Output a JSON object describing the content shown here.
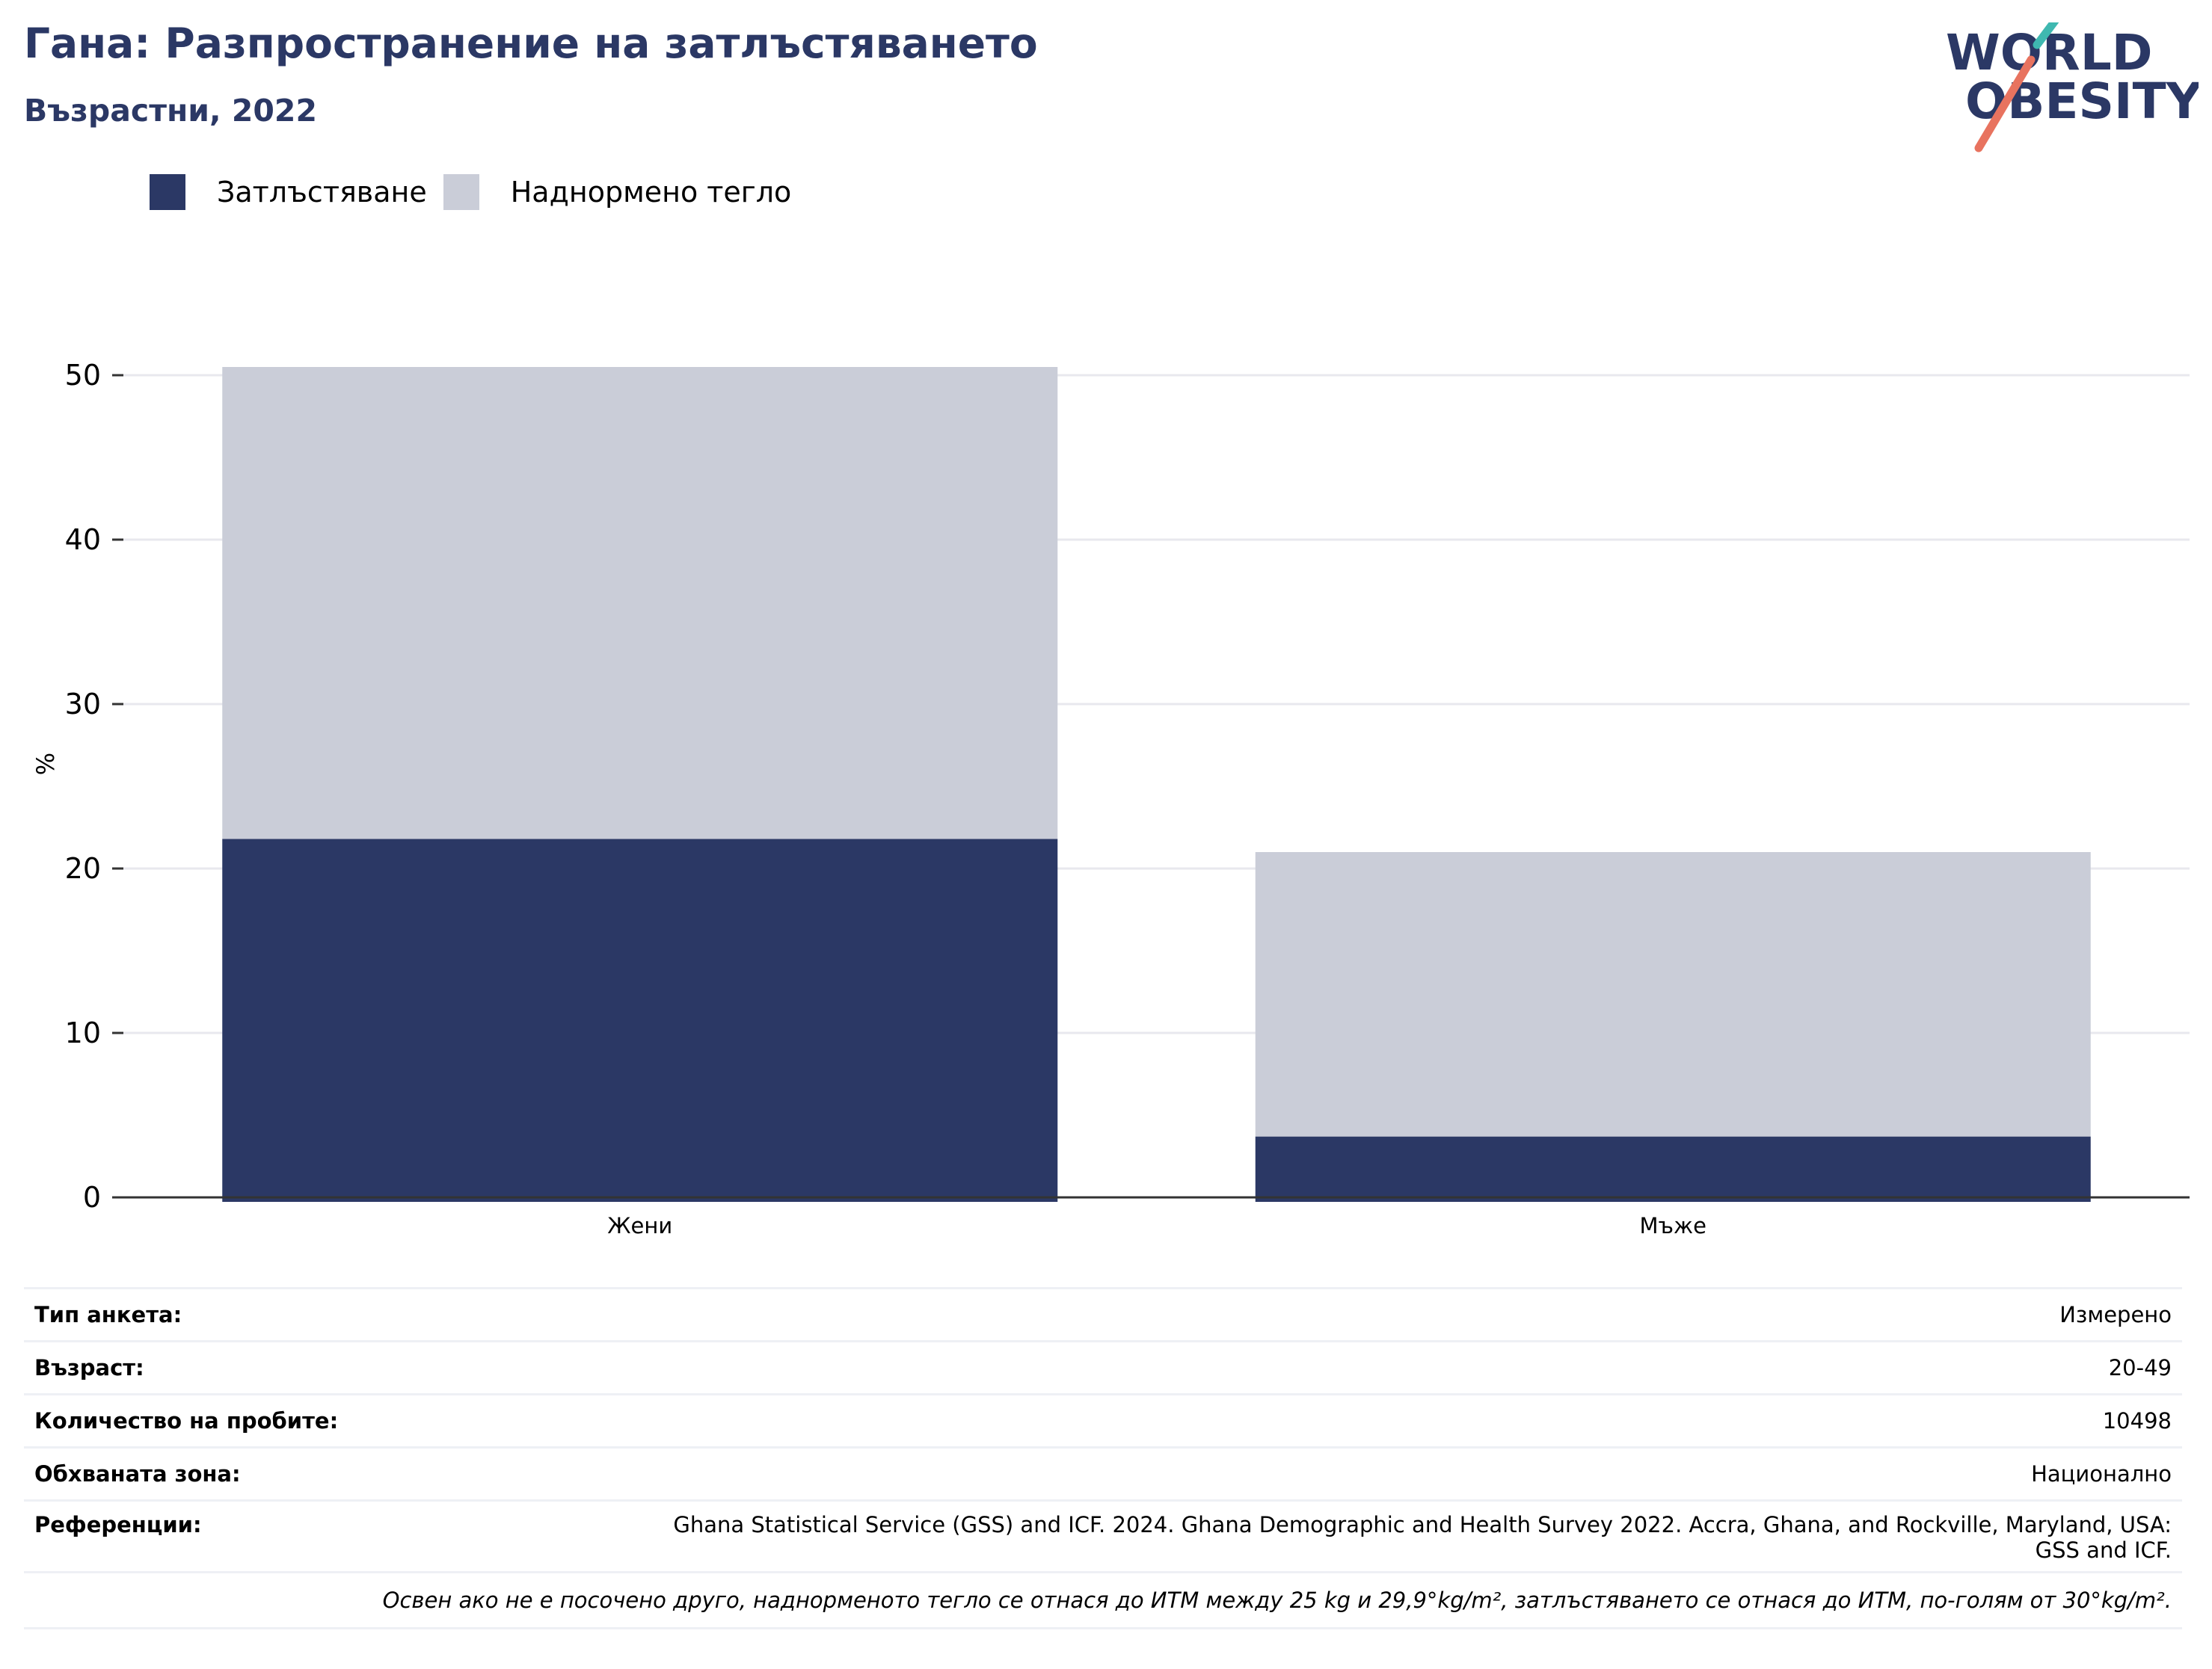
{
  "header": {
    "title": "Гана: Разпространение на затлъстяването",
    "subtitle": "Възрастни, 2022"
  },
  "logo": {
    "line1": "WORLD",
    "line2": "OBESITY"
  },
  "colors": {
    "obesity": "#2b3865",
    "overweight": "#cacdd8",
    "title": "#2b3865",
    "logo_teal": "#3fb8b0",
    "logo_coral": "#e8735f"
  },
  "chart_data": {
    "type": "bar",
    "stacked": true,
    "categories": [
      "Жени",
      "Мъже"
    ],
    "series": [
      {
        "name": "Затлъстяване",
        "values": [
          21.8,
          3.7
        ],
        "color": "#2b3865"
      },
      {
        "name": "Наднормено тегло",
        "values": [
          28.7,
          17.3
        ],
        "color": "#cacdd8"
      }
    ],
    "ylabel": "%",
    "ylim": [
      0,
      50
    ],
    "yticks": [
      0,
      10,
      20,
      30,
      40,
      50
    ],
    "grid": true,
    "legend_position": "top-left"
  },
  "info": {
    "rows": [
      {
        "key": "Тип анкета:",
        "value": "Измерено"
      },
      {
        "key": "Възраст:",
        "value": "20-49"
      },
      {
        "key": "Количество на пробите:",
        "value": "10498"
      },
      {
        "key": "Обхваната зона:",
        "value": "Национално"
      },
      {
        "key": "Референции:",
        "value": "Ghana Statistical Service (GSS) and ICF. 2024. Ghana Demographic and Health Survey 2022. Accra, Ghana, and Rockville, Maryland, USA:",
        "value2": "GSS and ICF."
      }
    ],
    "note": "Освен ако не е посочено друго, наднорменото тегло се отнася до ИТМ между 25 kg и 29,9°kg/m², затлъстяването се отнася до ИТМ, по-голям от 30°kg/m²."
  }
}
